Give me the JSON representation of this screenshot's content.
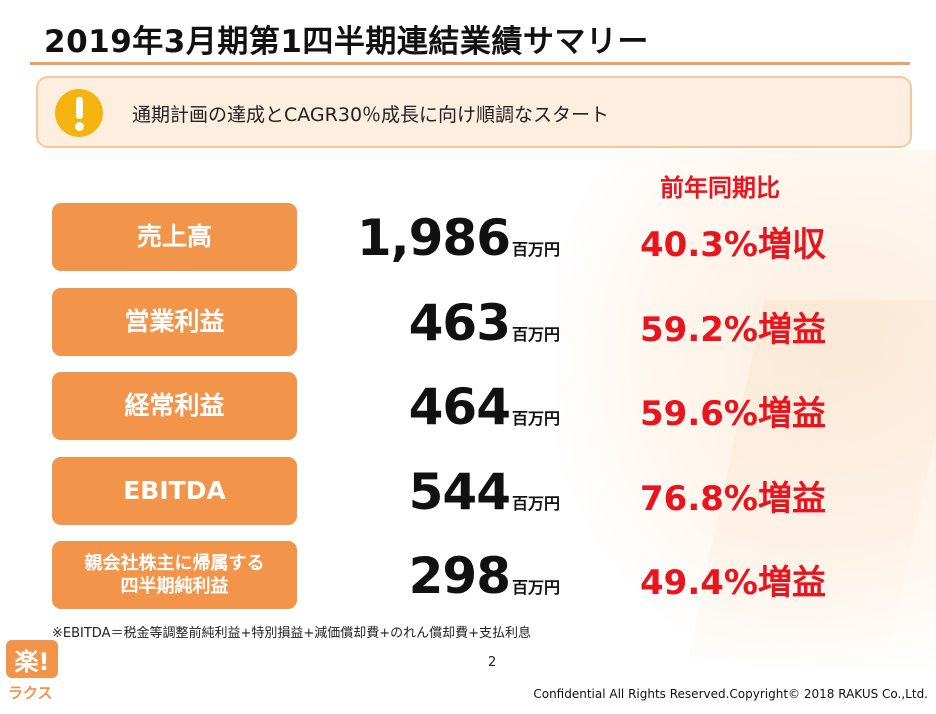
{
  "slide": {
    "title": "2019年3月期第1四半期連結業績サマリー",
    "callout": "通期計画の達成とCAGR30％成長に向け順調なスタート",
    "yoy_header": "前年同期比",
    "metrics": [
      {
        "label": "売上高",
        "value": "1,986",
        "unit": "百万円",
        "growth": "40.3%増収"
      },
      {
        "label": "営業利益",
        "value": "463",
        "unit": "百万円",
        "growth": "59.2%増益"
      },
      {
        "label": "経常利益",
        "value": "464",
        "unit": "百万円",
        "growth": "59.6%増益"
      },
      {
        "label": "EBITDA",
        "value": "544",
        "unit": "百万円",
        "growth": "76.8%増益"
      },
      {
        "label_line1": "親会社株主に帰属する",
        "label_line2": "四半期純利益",
        "value": "298",
        "unit": "百万円",
        "growth": "49.4%増益"
      }
    ],
    "footnote": "※EBITDA＝税金等調整前純利益+特別損益+減価償却費+のれん償却費+支払利息",
    "page_number": "2"
  },
  "footer": {
    "logo_mark": "楽!",
    "logo_text": "ラクス",
    "copyright": "Confidential All Rights Reserved.Copyright© 2018 RAKUS Co.,Ltd."
  },
  "colors": {
    "accent_orange": "#f2954b",
    "growth_red": "#e8141e",
    "callout_bg": "#fdeedf",
    "warning_yellow": "#f5b30f"
  },
  "icons": {
    "callout_icon": "exclamation-warning-icon"
  }
}
